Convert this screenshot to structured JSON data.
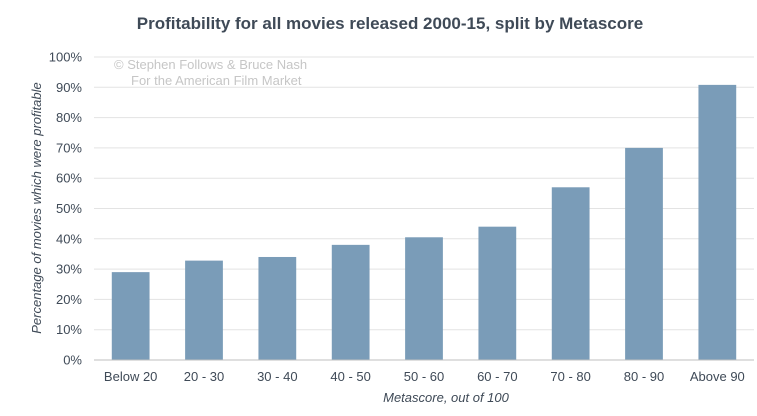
{
  "chart_data": {
    "type": "bar",
    "title": "Profitability for all movies released 2000-15, split by Metascore",
    "xlabel": "Metascore, out of 100",
    "ylabel": "Percentage of movies which were profitable",
    "categories": [
      "Below 20",
      "20 - 30",
      "30 - 40",
      "40 - 50",
      "50 - 60",
      "60 - 70",
      "70 - 80",
      "80 - 90",
      "Above 90"
    ],
    "values": [
      29,
      32.8,
      34,
      38,
      40.5,
      44,
      57,
      70,
      90.8
    ],
    "ylim": [
      0,
      100
    ],
    "yticks": [
      "0%",
      "10%",
      "20%",
      "30%",
      "40%",
      "50%",
      "60%",
      "70%",
      "80%",
      "90%",
      "100%"
    ],
    "grid": true,
    "legend": "none",
    "bar_color": "#7a9cb8",
    "credit_line1": "© Stephen Follows & Bruce Nash",
    "credit_line2": "For the American Film Market"
  }
}
